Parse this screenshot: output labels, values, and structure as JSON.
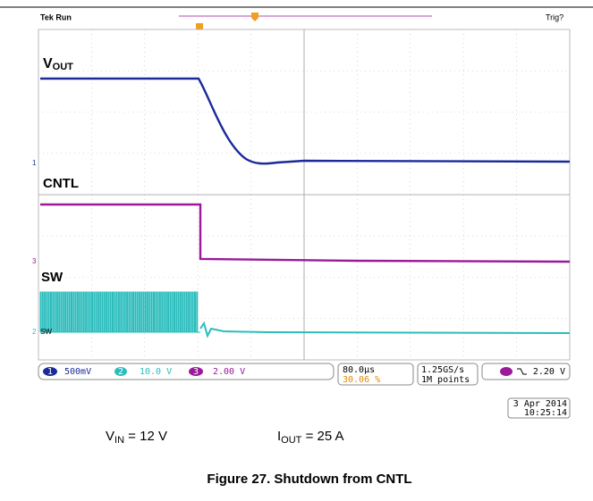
{
  "header": {
    "status": "Tek Run",
    "trigger_state": "Trig?"
  },
  "traces": {
    "vout": {
      "main": "V",
      "sub": "OUT"
    },
    "cntl": {
      "main": "CNTL"
    },
    "sw": {
      "main": "SW"
    }
  },
  "channel_markers": {
    "ch1": "1",
    "ch3": "3",
    "ch2": "2",
    "sw_tag": "SW"
  },
  "status_bar": {
    "ch1": {
      "number": "1",
      "scale": "500mV"
    },
    "ch2": {
      "number": "2",
      "scale": "10.0 V"
    },
    "ch3": {
      "number": "3",
      "scale": "2.00 V"
    },
    "timebase": "80.0µs",
    "trigger_position": "30.06 %",
    "sample_rate": "1.25GS/s",
    "record_length": "1M points",
    "trigger_level": "2.20 V"
  },
  "timestamp": {
    "date": "3 Apr 2014",
    "time": "10:25:14"
  },
  "conditions": [
    {
      "main": "V",
      "sub": "IN",
      "rest": " = 12 V"
    },
    {
      "main": "I",
      "sub": "OUT",
      "rest": " = 25 A"
    }
  ],
  "caption": "Figure 27. Shutdown from CNTL"
}
